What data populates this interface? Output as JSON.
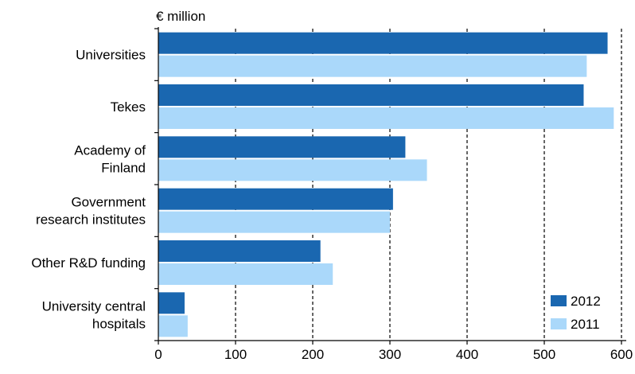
{
  "chart_data": {
    "type": "bar",
    "orientation": "horizontal",
    "unit_label": "€ million",
    "categories": [
      [
        "Universities"
      ],
      [
        "Tekes"
      ],
      [
        "Academy of",
        "Finland"
      ],
      [
        "Government",
        "research institutes"
      ],
      [
        "Other R&D funding"
      ],
      [
        "University central",
        "hospitals"
      ]
    ],
    "series": [
      {
        "name": "2012",
        "color": "#1a67b0",
        "values": [
          582,
          551,
          320,
          304,
          210,
          34
        ]
      },
      {
        "name": "2011",
        "color": "#aad8fa",
        "values": [
          555,
          590,
          348,
          300,
          226,
          38
        ]
      }
    ],
    "xlim": [
      0,
      600
    ],
    "xticks": [
      "0",
      "100",
      "200",
      "300",
      "400",
      "500",
      "600"
    ],
    "grid": "vertical dashed",
    "legend_position": "bottom-right"
  }
}
